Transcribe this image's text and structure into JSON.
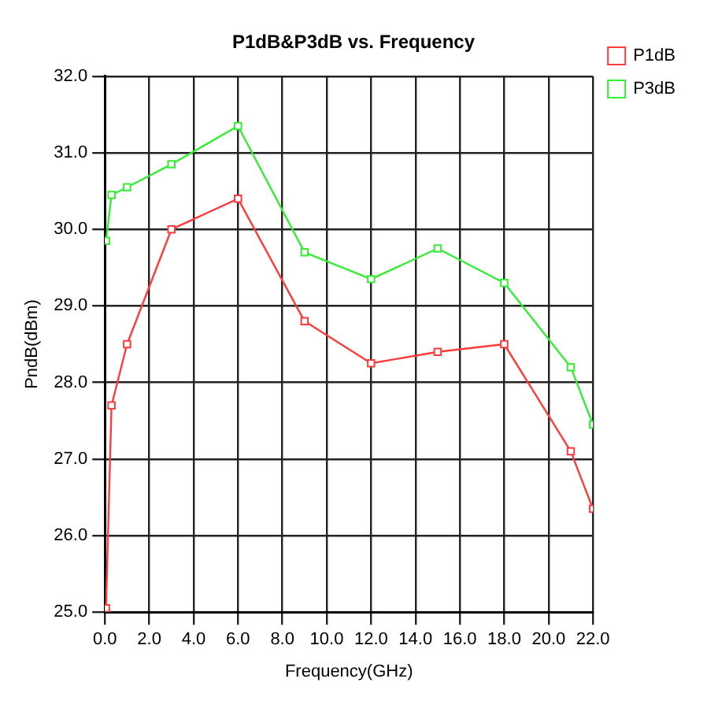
{
  "chart_data": {
    "type": "line",
    "title": "P1dB&P3dB vs. Frequency",
    "xlabel": "Frequency(GHz)",
    "ylabel": "PndB(dBm)",
    "x": [
      0.05,
      0.3,
      1,
      3,
      6,
      9,
      12,
      15,
      18,
      21,
      22
    ],
    "series": [
      {
        "name": "P1dB",
        "color": "#ff3b3b",
        "values": [
          25.05,
          27.7,
          28.5,
          30.0,
          30.4,
          28.8,
          28.25,
          28.4,
          28.5,
          27.1,
          26.35
        ]
      },
      {
        "name": "P3dB",
        "color": "#33ee33",
        "values": [
          29.85,
          30.45,
          30.55,
          30.85,
          31.35,
          29.7,
          29.35,
          29.75,
          29.3,
          28.2,
          27.45
        ]
      }
    ],
    "xlim": [
      0,
      22
    ],
    "xticks": [
      {
        "value": 0,
        "label": "0.0"
      },
      {
        "value": 2,
        "label": "2.0"
      },
      {
        "value": 4,
        "label": "4.0"
      },
      {
        "value": 6,
        "label": "6.0"
      },
      {
        "value": 8,
        "label": "8.0"
      },
      {
        "value": 10,
        "label": "10.0"
      },
      {
        "value": 12,
        "label": "12.0"
      },
      {
        "value": 14,
        "label": "14.0"
      },
      {
        "value": 16,
        "label": "16.0"
      },
      {
        "value": 18,
        "label": "18.0"
      },
      {
        "value": 20,
        "label": "20.0"
      },
      {
        "value": 22,
        "label": "22.0"
      }
    ],
    "ylim": [
      25,
      32
    ],
    "yticks": [
      {
        "value": 25,
        "label": "25.0"
      },
      {
        "value": 26,
        "label": "26.0"
      },
      {
        "value": 27,
        "label": "27.0"
      },
      {
        "value": 28,
        "label": "28.0"
      },
      {
        "value": 29,
        "label": "29.0"
      },
      {
        "value": 30,
        "label": "30.0"
      },
      {
        "value": 31,
        "label": "31.0"
      },
      {
        "value": 32,
        "label": "32.0"
      }
    ],
    "grid": true,
    "legend": "top right",
    "marker": "square",
    "line_style": "solid"
  }
}
